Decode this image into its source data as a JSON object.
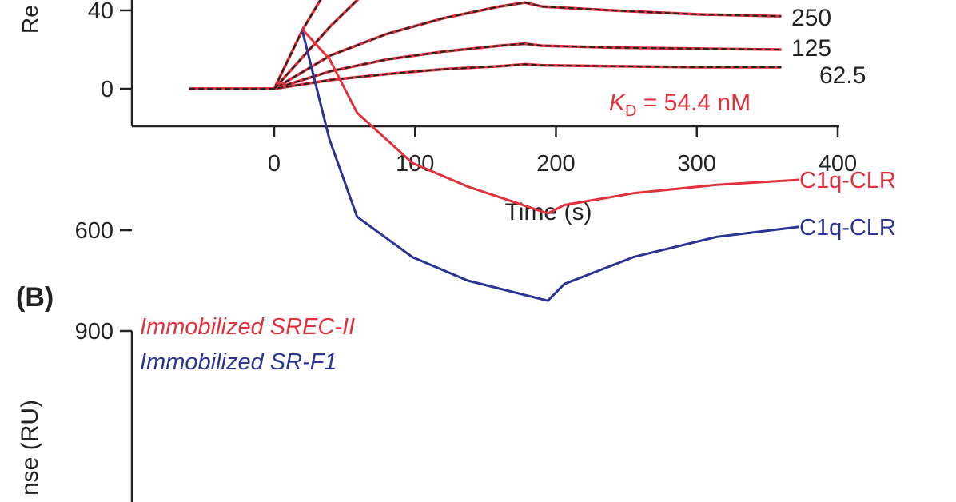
{
  "panel_a": {
    "ylabel_fragment": "Re",
    "xlabel": "Time (s)",
    "kd_symbol": "K",
    "kd_subscript": "D",
    "kd_value": " = 54.4 nM",
    "chart_data": {
      "type": "line",
      "xlabel": "Time (s)",
      "xlim": [
        -100,
        400
      ],
      "xticks": [
        "0",
        "100",
        "200",
        "300",
        "400"
      ],
      "ylim": [
        -25,
        55
      ],
      "yticks": [
        "0",
        "40"
      ],
      "series": [
        {
          "name": "250",
          "x": [
            -60,
            0,
            40,
            80,
            120,
            160,
            178,
            190,
            240,
            300,
            360
          ],
          "y": [
            0,
            0,
            17,
            28,
            36,
            42,
            44,
            42,
            40,
            38,
            37
          ]
        },
        {
          "name": "125",
          "x": [
            -60,
            0,
            40,
            80,
            120,
            160,
            178,
            190,
            240,
            300,
            360
          ],
          "y": [
            0,
            0,
            9,
            15,
            19,
            22,
            23,
            22,
            21,
            20.5,
            20
          ]
        },
        {
          "name": "62.5",
          "x": [
            -60,
            0,
            40,
            80,
            120,
            160,
            178,
            190,
            240,
            300,
            360
          ],
          "y": [
            0,
            0,
            4.5,
            7.5,
            10,
            11.5,
            12.5,
            12,
            11.5,
            11,
            11
          ]
        },
        {
          "name": "",
          "x": [
            0,
            20,
            45
          ],
          "y": [
            0,
            30,
            60
          ]
        },
        {
          "name": "",
          "x": [
            0,
            40,
            80
          ],
          "y": [
            0,
            32,
            60
          ]
        }
      ]
    }
  },
  "panel_b": {
    "panel_label": "(B)",
    "ylabel_fragment": "nse (RU)",
    "legend": [
      {
        "label": "Immobilized SREC-II",
        "color": "#e0323c"
      },
      {
        "label": "Immobilized SR-F1",
        "color": "#2b3494"
      }
    ],
    "chart_data": {
      "type": "line",
      "ylabel": "Response (RU)",
      "ylim": [
        0,
        900
      ],
      "yticks": [
        "900",
        "600"
      ],
      "x": [
        0,
        20,
        40,
        80,
        120,
        178,
        190,
        240,
        300,
        360
      ],
      "series": [
        {
          "name": "C1q-CLR",
          "color": "#2b3494",
          "y": [
            0,
            330,
            560,
            680,
            750,
            810,
            760,
            680,
            620,
            590
          ]
        },
        {
          "name": "C1q-CLR",
          "color": "#e0323c",
          "y": [
            0,
            90,
            250,
            400,
            470,
            550,
            525,
            490,
            465,
            450
          ]
        }
      ]
    }
  }
}
